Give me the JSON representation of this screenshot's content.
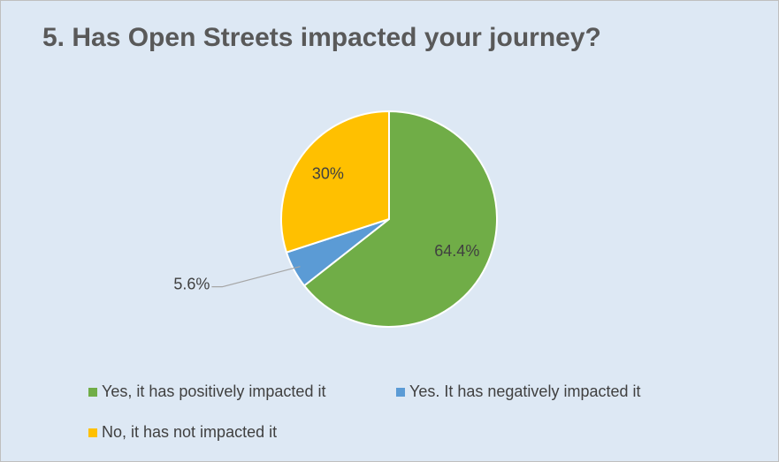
{
  "chart_data": {
    "type": "pie",
    "title": "5. Has Open Streets impacted your journey?",
    "categories": [
      "Yes, it has positively impacted it",
      "Yes. It has negatively impacted it",
      "No, it has not impacted it"
    ],
    "values": [
      64.4,
      5.6,
      30
    ],
    "value_labels": [
      "64.4%",
      "5.6%",
      "30%"
    ],
    "colors": [
      "#70ad47",
      "#5b9bd5",
      "#ffc000"
    ],
    "legend": "bottom"
  }
}
